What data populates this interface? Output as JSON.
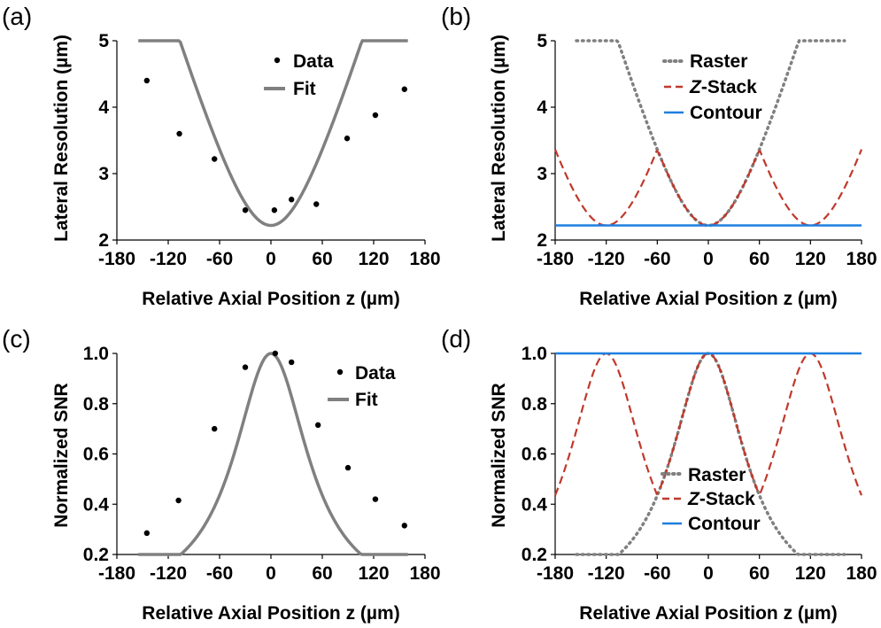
{
  "chart_data": [
    {
      "id": "a",
      "panel_label": "(a)",
      "type": "scatter",
      "xlabel": "Relative Axial Position z (µm)",
      "ylabel": "Lateral Resolution (µm)",
      "xlim": [
        -180,
        180
      ],
      "ylim": [
        2,
        5
      ],
      "xticks": [
        "-180",
        "-120",
        "-60",
        "0",
        "60",
        "120",
        "180"
      ],
      "yticks": [
        "2",
        "3",
        "4",
        "5"
      ],
      "grid": false,
      "legend_position": "top-center",
      "series": [
        {
          "name": "Data",
          "kind": "points",
          "color": "#000000",
          "x": [
            -145,
            -107,
            -66,
            -30,
            4,
            24,
            53,
            89,
            122,
            156
          ],
          "y": [
            4.4,
            3.6,
            3.22,
            2.45,
            2.45,
            2.61,
            2.54,
            3.53,
            3.88,
            4.27
          ]
        },
        {
          "name": "Fit",
          "kind": "fit",
          "color": "#808080",
          "model": "resolution",
          "w0": 2.22,
          "zr": 52.7,
          "xrange": [
            -155,
            160
          ]
        }
      ]
    },
    {
      "id": "b",
      "panel_label": "(b)",
      "type": "line",
      "xlabel": "Relative Axial Position z (µm)",
      "ylabel": "Lateral Resolution (µm)",
      "xlim": [
        -180,
        180
      ],
      "ylim": [
        2,
        5
      ],
      "xticks": [
        "-180",
        "-120",
        "-60",
        "0",
        "60",
        "120",
        "180"
      ],
      "yticks": [
        "2",
        "3",
        "4",
        "5"
      ],
      "grid": false,
      "legend_position": "top-center",
      "series": [
        {
          "name": "Raster",
          "kind": "raster",
          "color": "#808080",
          "dash": "dotted",
          "w0": 2.22,
          "zr": 52.7,
          "xrange": [
            -155,
            160
          ]
        },
        {
          "name_italic": "Z",
          "name": "-Stack",
          "kind": "zstack",
          "color": "#c0392b",
          "dash": "dashed",
          "w0": 2.22,
          "zr": 52.7,
          "centers": [
            -120,
            0,
            120
          ],
          "xrange": [
            -180,
            180
          ]
        },
        {
          "name": "Contour",
          "kind": "contour",
          "color": "#1e7fe0",
          "dash": "solid",
          "value": 2.22,
          "xrange": [
            -180,
            180
          ]
        }
      ]
    },
    {
      "id": "c",
      "panel_label": "(c)",
      "type": "scatter",
      "xlabel": "Relative Axial Position z (µm)",
      "ylabel": "Normalized SNR",
      "xlim": [
        -180,
        180
      ],
      "ylim": [
        0.2,
        1.0
      ],
      "xticks": [
        "-180",
        "-120",
        "-60",
        "0",
        "60",
        "120",
        "180"
      ],
      "yticks": [
        "0.2",
        "0.4",
        "0.6",
        "0.8",
        "1.0"
      ],
      "grid": false,
      "legend_position": "top-right",
      "series": [
        {
          "name": "Data",
          "kind": "points",
          "color": "#000000",
          "x": [
            -145,
            -108,
            -66,
            -30,
            5,
            24,
            55,
            90,
            122,
            156
          ],
          "y": [
            0.285,
            0.415,
            0.7,
            0.945,
            1.0,
            0.965,
            0.715,
            0.545,
            0.42,
            0.315
          ]
        },
        {
          "name": "Fit",
          "kind": "fit",
          "color": "#808080",
          "model": "snr",
          "zr": 52.7,
          "xrange": [
            -155,
            160
          ]
        }
      ]
    },
    {
      "id": "d",
      "panel_label": "(d)",
      "type": "line",
      "xlabel": "Relative Axial Position z (µm)",
      "ylabel": "Normalized SNR",
      "xlim": [
        -180,
        180
      ],
      "ylim": [
        0.2,
        1.0
      ],
      "xticks": [
        "-180",
        "-120",
        "-60",
        "0",
        "60",
        "120",
        "180"
      ],
      "yticks": [
        "0.2",
        "0.4",
        "0.6",
        "0.8",
        "1.0"
      ],
      "grid": false,
      "legend_position": "bottom-center",
      "series": [
        {
          "name": "Raster",
          "kind": "raster",
          "color": "#808080",
          "dash": "dotted",
          "zr": 52.7,
          "xrange": [
            -155,
            160
          ]
        },
        {
          "name_italic": "Z",
          "name": "-Stack",
          "kind": "zstack",
          "color": "#c0392b",
          "dash": "dashed",
          "zr": 52.7,
          "centers": [
            -120,
            0,
            120
          ],
          "xrange": [
            -180,
            180
          ]
        },
        {
          "name": "Contour",
          "kind": "contour",
          "color": "#1e7fe0",
          "dash": "solid",
          "value": 1.0,
          "xrange": [
            -180,
            180
          ]
        }
      ]
    }
  ]
}
